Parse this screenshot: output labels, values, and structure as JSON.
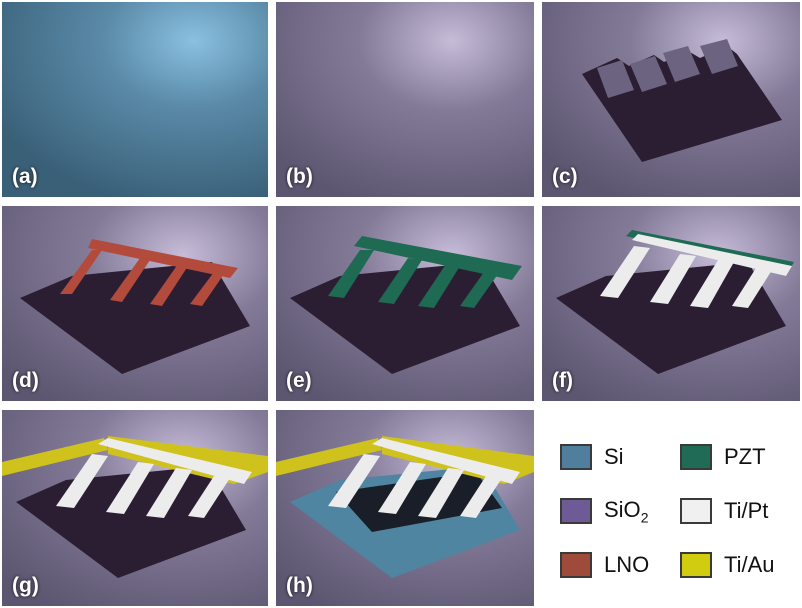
{
  "panels": [
    {
      "label": "(a)"
    },
    {
      "label": "(b)"
    },
    {
      "label": "(c)"
    },
    {
      "label": "(d)"
    },
    {
      "label": "(e)"
    },
    {
      "label": "(f)"
    },
    {
      "label": "(g)"
    },
    {
      "label": "(h)"
    }
  ],
  "legend": [
    {
      "label": "Si",
      "color": "#4f7f9c"
    },
    {
      "label": "SiO",
      "sub": "2",
      "color": "#6e5a94"
    },
    {
      "label": "LNO",
      "color": "#a04a3c"
    },
    {
      "label": "PZT",
      "color": "#1f6b55"
    },
    {
      "label": "Ti/Pt",
      "color": "#f0f0f0"
    },
    {
      "label": "Ti/Au",
      "color": "#d2cc10"
    }
  ],
  "colors": {
    "si_bg": "#4d7a96",
    "sio2_bg": "#6d6782",
    "cavity": "#2a1d33",
    "lno": "#b24b3c",
    "pzt": "#1e6a52",
    "tipt": "#ececec",
    "tiau": "#cfc21c",
    "si_exposed": "#4f85a0"
  }
}
